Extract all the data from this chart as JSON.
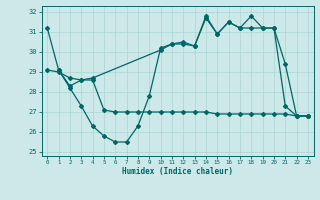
{
  "xlabel": "Humidex (Indice chaleur)",
  "xlim": [
    -0.5,
    23.5
  ],
  "ylim": [
    24.8,
    32.3
  ],
  "bg_color": "#cce8e8",
  "grid_color": "#aad4d4",
  "line_color": "#006666",
  "xticks": [
    0,
    1,
    2,
    3,
    4,
    5,
    6,
    7,
    8,
    9,
    10,
    11,
    12,
    13,
    14,
    15,
    16,
    17,
    18,
    19,
    20,
    21,
    22,
    23
  ],
  "yticks": [
    25,
    26,
    27,
    28,
    29,
    30,
    31,
    32
  ],
  "line1_x": [
    0,
    1,
    2,
    3,
    4,
    5,
    6,
    7,
    8,
    9,
    10,
    11,
    12,
    13,
    14,
    15,
    16,
    17,
    18,
    19,
    20,
    21,
    22,
    23
  ],
  "line1_y": [
    31.2,
    29.1,
    28.2,
    27.3,
    26.3,
    25.8,
    25.5,
    25.5,
    26.3,
    27.8,
    30.2,
    30.4,
    30.4,
    30.3,
    31.7,
    30.9,
    31.5,
    31.2,
    31.2,
    31.2,
    31.2,
    27.3,
    26.8,
    26.8
  ],
  "line2_x": [
    1,
    2,
    3,
    4,
    10,
    11,
    12,
    13,
    14,
    15,
    16,
    17,
    18,
    19,
    20,
    21,
    22,
    23
  ],
  "line2_y": [
    29.1,
    28.3,
    28.6,
    28.7,
    30.1,
    30.4,
    30.5,
    30.3,
    31.8,
    30.9,
    31.5,
    31.2,
    31.8,
    31.2,
    31.2,
    29.4,
    26.8,
    26.8
  ],
  "line3_x": [
    0,
    1,
    2,
    3,
    4,
    5,
    6,
    7,
    8,
    9,
    10,
    11,
    12,
    13,
    14,
    15,
    16,
    17,
    18,
    19,
    20,
    21,
    22,
    23
  ],
  "line3_y": [
    29.1,
    29.0,
    28.7,
    28.6,
    28.6,
    27.1,
    27.0,
    27.0,
    27.0,
    27.0,
    27.0,
    27.0,
    27.0,
    27.0,
    27.0,
    26.9,
    26.9,
    26.9,
    26.9,
    26.9,
    26.9,
    26.9,
    26.8,
    26.8
  ]
}
